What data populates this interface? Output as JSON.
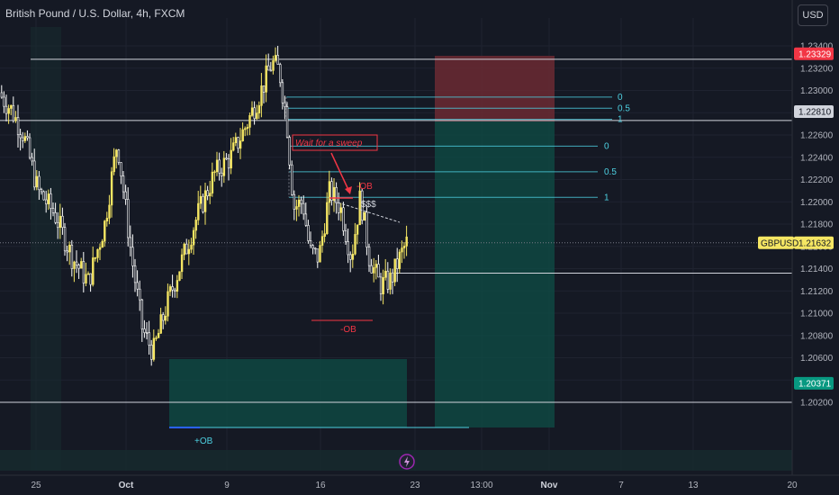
{
  "header": {
    "title": "British Pound / U.S. Dollar, 4h, FXCM",
    "currency": "USD"
  },
  "chart_data": {
    "type": "candlestick",
    "symbol": "GBPUSD",
    "ylim": [
      1.201,
      1.235
    ],
    "y_ticks": [
      "1.23400",
      "1.23200",
      "1.23000",
      "1.22800",
      "1.22600",
      "1.22400",
      "1.22200",
      "1.22000",
      "1.21800",
      "1.21600",
      "1.21400",
      "1.21200",
      "1.21000",
      "1.20800",
      "1.20600",
      "1.20400",
      "1.20200"
    ],
    "y_tick_values": [
      1.234,
      1.232,
      1.23,
      1.228,
      1.226,
      1.224,
      1.222,
      1.22,
      1.218,
      1.216,
      1.214,
      1.212,
      1.21,
      1.208,
      1.206,
      1.204,
      1.202
    ],
    "x_ticks": [
      {
        "label": "25",
        "bold": false
      },
      {
        "label": "Oct",
        "bold": true
      },
      {
        "label": "9",
        "bold": false
      },
      {
        "label": "16",
        "bold": false
      },
      {
        "label": "23",
        "bold": false
      },
      {
        "label": "13:00",
        "bold": false
      },
      {
        "label": "Nov",
        "bold": true
      },
      {
        "label": "7",
        "bold": false
      },
      {
        "label": "13",
        "bold": false
      },
      {
        "label": "20",
        "bold": false
      }
    ],
    "price_tags": [
      {
        "label": "1.23329",
        "value": 1.23329,
        "bg": "#f23645",
        "fg": "#ffffff"
      },
      {
        "label": "1.22810",
        "value": 1.2281,
        "bg": "#d1d4dc",
        "fg": "#131722"
      },
      {
        "label": "1.21632",
        "value": 1.21632,
        "bg": "#f5e663",
        "fg": "#131722"
      },
      {
        "label": "1.20371",
        "value": 1.20371,
        "bg": "#089981",
        "fg": "#ffffff"
      }
    ],
    "symbol_label": "GBPUSD",
    "horizontal_lines": [
      1.2328,
      1.2273,
      1.2136,
      1.202
    ],
    "fib_sets": [
      {
        "levels": [
          {
            "label": "0",
            "value": 1.2294
          },
          {
            "label": "0.5",
            "value": 1.2284
          },
          {
            "label": "1",
            "value": 1.2274
          }
        ]
      },
      {
        "levels": [
          {
            "label": "0",
            "value": 1.225
          },
          {
            "label": "0.5",
            "value": 1.2227
          },
          {
            "label": "1",
            "value": 1.2204
          }
        ]
      }
    ],
    "annotations": {
      "sweep_text": "Wait for a sweep",
      "liquidity_text": "$$$",
      "bearish_ob_text": "-OB",
      "bullish_ob_text": "+OB",
      "small_mark_text": "-OB"
    },
    "colors": {
      "bull": "#f5e663",
      "bear": "#ffffff",
      "fib": "#4dd0e1",
      "annotation": "#f23645",
      "target_zone": "#0e4d45",
      "stop_zone": "#6b2a33",
      "demand_zone": "#0e4d45"
    }
  }
}
